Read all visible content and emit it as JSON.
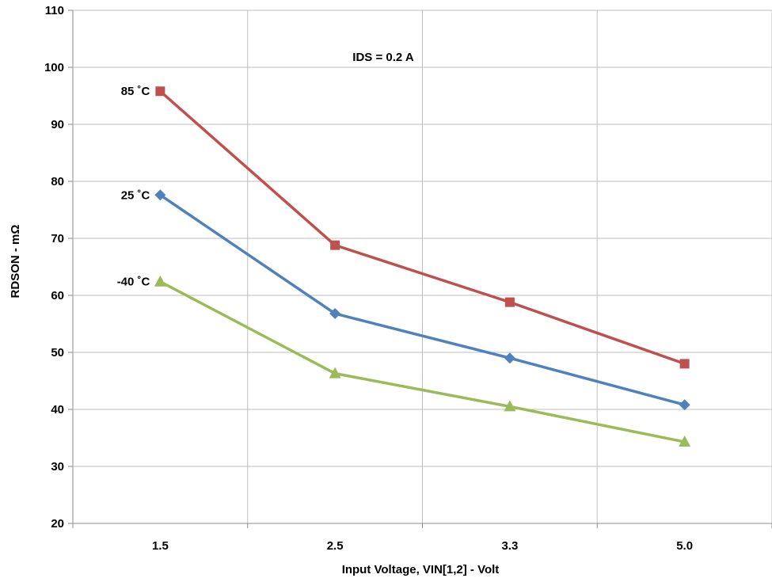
{
  "chart_data": {
    "type": "line",
    "title": "",
    "xlabel": "Input Voltage, VIN[1,2] - Volt",
    "ylabel": "RDSON - mΩ",
    "categories": [
      "1.5",
      "2.5",
      "3.3",
      "5.0"
    ],
    "ylim": [
      20,
      110
    ],
    "yticks": [
      "20",
      "30",
      "40",
      "50",
      "60",
      "70",
      "80",
      "90",
      "100",
      "110"
    ],
    "grid": true,
    "legend": "none",
    "annotation": "IDS = 0.2 A",
    "series": [
      {
        "name": "85 ˚C",
        "values": [
          95.8,
          68.8,
          58.8,
          48.0
        ],
        "color": "#c0504d",
        "marker": "square"
      },
      {
        "name": "25 ˚C",
        "values": [
          77.6,
          56.8,
          49.0,
          40.8
        ],
        "color": "#4f81bd",
        "marker": "diamond"
      },
      {
        "name": "-40 ˚C",
        "values": [
          62.4,
          46.3,
          40.5,
          34.3
        ],
        "color": "#9bbb59",
        "marker": "triangle"
      }
    ]
  }
}
